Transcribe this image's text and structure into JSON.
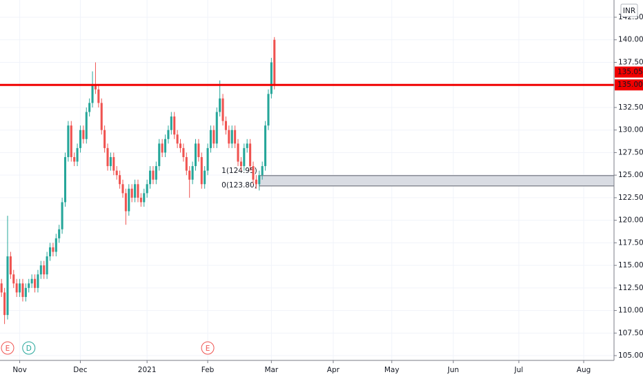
{
  "chart_data": {
    "type": "candlestick",
    "currency": "INR",
    "x": [
      0,
      1,
      2,
      3,
      4,
      5,
      6,
      7,
      8,
      9,
      10,
      11,
      12,
      13,
      14,
      15,
      16,
      17,
      18,
      19,
      20,
      21,
      22,
      23,
      24,
      25,
      26,
      27,
      28,
      29,
      30,
      31,
      32,
      33,
      34,
      35,
      36,
      37,
      38,
      39,
      40,
      41,
      42,
      43,
      44,
      45,
      46,
      47,
      48,
      49,
      50,
      51,
      52,
      53,
      54,
      55,
      56,
      57,
      58,
      59,
      60,
      61,
      62,
      63,
      64,
      65,
      66,
      67,
      68,
      69,
      70,
      71,
      72,
      73,
      74,
      75,
      76,
      77,
      78,
      79,
      80,
      81,
      82,
      83,
      84,
      85,
      86,
      87,
      88,
      89,
      90
    ],
    "open": [
      113,
      112,
      109.5,
      116,
      114,
      113,
      112,
      113,
      111.5,
      112.5,
      113,
      113.5,
      112.5,
      114,
      115,
      114,
      116,
      117,
      116.5,
      118,
      119,
      122,
      127,
      130.5,
      127,
      126.5,
      128,
      130,
      129,
      132,
      133,
      135,
      134.5,
      133,
      130,
      128,
      126,
      127,
      125.5,
      125,
      124,
      123,
      121,
      123.5,
      122.5,
      124,
      122.5,
      122,
      123,
      124,
      125.5,
      124.5,
      126,
      128.5,
      127.5,
      129,
      130,
      131.5,
      129.5,
      128.5,
      128,
      127,
      125.5,
      124.5,
      126,
      128.5,
      127,
      124,
      125.5,
      128,
      130,
      128.5,
      132,
      133.5,
      131,
      130,
      128.5,
      130,
      128.5,
      126.5,
      126,
      128,
      128.5,
      126,
      124.5,
      124,
      125,
      126,
      130.5,
      134,
      140
    ],
    "high": [
      113.5,
      112.5,
      120.5,
      116.5,
      114.5,
      113.5,
      113.5,
      113.5,
      113,
      113.5,
      114,
      114,
      114.5,
      115.5,
      115.5,
      116.5,
      117.5,
      117.5,
      118.5,
      119.5,
      122.5,
      127.5,
      131,
      131,
      127.5,
      128.5,
      130.5,
      130.5,
      132.5,
      133.5,
      136.5,
      137.5,
      135,
      133.5,
      130.5,
      128.5,
      127.5,
      127.5,
      126,
      125.5,
      124.5,
      123.5,
      124,
      124,
      124.5,
      124.5,
      123,
      123.5,
      124.5,
      126,
      126,
      126.5,
      129,
      129,
      129.5,
      130.5,
      132,
      132,
      130,
      129,
      128.5,
      127.5,
      126,
      126.5,
      129,
      129,
      127.5,
      126,
      128.5,
      130.5,
      130.5,
      132.5,
      135.5,
      134,
      131.5,
      130.5,
      130.5,
      130.5,
      129,
      127,
      128.5,
      129,
      129,
      126.5,
      125,
      125.5,
      126.5,
      131,
      134.5,
      138,
      140.3
    ],
    "low": [
      111.5,
      108.5,
      109,
      113.5,
      112.5,
      111.5,
      111.5,
      111,
      111,
      112,
      112.5,
      112,
      112,
      113.5,
      113.5,
      113.5,
      115.5,
      116,
      116,
      117.5,
      118.5,
      121.5,
      126.5,
      126.5,
      126,
      126,
      127.5,
      128.5,
      128.5,
      131.5,
      132.5,
      134,
      132.5,
      129.5,
      127.5,
      125.5,
      125.5,
      125,
      124.5,
      123.5,
      122.5,
      119.5,
      120.5,
      122,
      122,
      122,
      121.5,
      121.5,
      122.5,
      123.5,
      124,
      124,
      125.5,
      127,
      127,
      128.5,
      129.5,
      129,
      128,
      127.5,
      126.5,
      125,
      122.5,
      124,
      125.5,
      126.5,
      123.5,
      123.5,
      125,
      127.5,
      128,
      128,
      131.5,
      130.5,
      129.5,
      128,
      128,
      128,
      126,
      125.5,
      125.5,
      127.5,
      125.5,
      124,
      123.5,
      123.3,
      124.5,
      125.5,
      130,
      133.5,
      134.5
    ],
    "close": [
      112,
      109.5,
      116,
      114,
      113,
      112,
      113,
      111.5,
      112.5,
      113,
      113.5,
      112.5,
      114,
      115,
      114,
      116,
      117,
      116.5,
      118,
      119,
      122,
      127,
      130.5,
      127,
      126.5,
      128,
      130,
      129,
      132,
      133,
      135,
      134.5,
      133,
      130,
      128,
      126,
      127,
      125.5,
      125,
      124,
      123,
      121,
      123.5,
      122.5,
      124,
      122.5,
      122,
      123,
      124,
      125.5,
      124.5,
      126,
      128.5,
      127.5,
      129,
      130,
      131.5,
      129.5,
      128.5,
      128,
      127,
      125.5,
      124.5,
      126,
      128.5,
      127,
      124,
      125.5,
      128,
      130,
      128.5,
      132,
      133.5,
      131,
      130,
      128.5,
      130,
      128.5,
      126.5,
      126,
      128,
      128.5,
      126,
      124.5,
      124,
      125,
      126,
      130.5,
      134,
      137.5,
      135
    ],
    "up_color": "#26a69a",
    "down_color": "#ef5350",
    "xlim": [
      -0.5,
      202
    ],
    "xticks": [
      {
        "value": 6,
        "label": "Nov"
      },
      {
        "value": 26,
        "label": "Dec"
      },
      {
        "value": 48,
        "label": "2021"
      },
      {
        "value": 68,
        "label": "Feb"
      },
      {
        "value": 89,
        "label": "Mar"
      },
      {
        "value": 109.4,
        "label": "Apr"
      },
      {
        "value": 128.7,
        "label": "May"
      },
      {
        "value": 149,
        "label": "Jun"
      },
      {
        "value": 170.6,
        "label": "Jul"
      },
      {
        "value": 192,
        "label": "Aug"
      }
    ],
    "ylim": [
      104.47,
      144.41
    ],
    "yticks": [
      {
        "value": 105,
        "label": "105.00"
      },
      {
        "value": 107.5,
        "label": "107.50"
      },
      {
        "value": 110,
        "label": "110.00"
      },
      {
        "value": 112.5,
        "label": "112.50"
      },
      {
        "value": 115,
        "label": "115.00"
      },
      {
        "value": 117.5,
        "label": "117.50"
      },
      {
        "value": 120,
        "label": "120.00"
      },
      {
        "value": 122.5,
        "label": "122.50"
      },
      {
        "value": 125,
        "label": "125.00"
      },
      {
        "value": 127.5,
        "label": "127.50"
      },
      {
        "value": 130,
        "label": "130.00"
      },
      {
        "value": 132.5,
        "label": "132.50"
      },
      {
        "value": 135,
        "label": "135.00"
      },
      {
        "value": 137.5,
        "label": "137.50"
      },
      {
        "value": 140,
        "label": "140.00"
      },
      {
        "value": 142.5,
        "label": "142.50"
      }
    ],
    "grid": true,
    "hline": {
      "value": 135,
      "color": "#f00000"
    },
    "price_labels": [
      {
        "value": 135.05,
        "label": "135.05"
      },
      {
        "value": 135,
        "label": "135.00"
      }
    ],
    "zone": {
      "x": 85,
      "top": 124.95,
      "bottom": 123.8,
      "top_label": "1(124.95)",
      "bottom_label": "0(123.80)"
    },
    "events": [
      {
        "x": 2,
        "label": "E",
        "color": "#ef5350"
      },
      {
        "x": 9,
        "label": "D",
        "color": "#26a69a"
      },
      {
        "x": 68,
        "label": "E",
        "color": "#ef5350"
      }
    ]
  }
}
